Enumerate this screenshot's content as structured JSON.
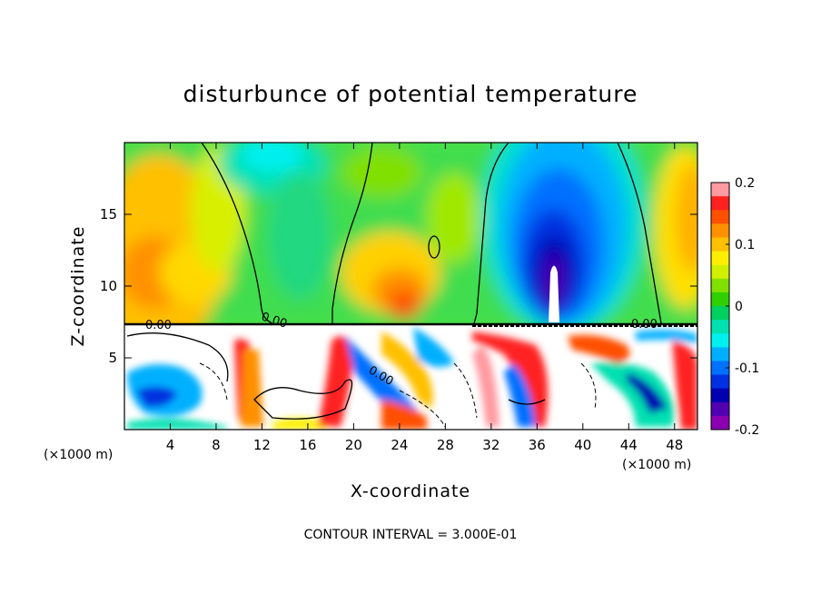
{
  "chart_data": {
    "type": "heatmap",
    "title": "disturbunce of potential temperature",
    "xlabel": "X-coordinate",
    "ylabel": "Z-coordinate",
    "x_unit_left": "(×1000 m)",
    "x_unit_right": "(×1000 m)",
    "footer": "CONTOUR INTERVAL = 3.000E-01",
    "xlim": [
      0,
      50
    ],
    "ylim": [
      0,
      20
    ],
    "x_ticks": [
      4,
      8,
      12,
      16,
      20,
      24,
      28,
      32,
      36,
      40,
      44,
      48
    ],
    "y_ticks": [
      5,
      10,
      15
    ],
    "colorbar": {
      "range": [
        -0.2,
        0.2
      ],
      "ticks": [
        "0.2",
        "0.1",
        "0",
        "-0.1",
        "-0.2"
      ],
      "colors": [
        "#ff9aa0",
        "#ff2020",
        "#ff5000",
        "#ff9000",
        "#ffc000",
        "#ffee00",
        "#d0f000",
        "#80e000",
        "#30d000",
        "#00d060",
        "#00e0b0",
        "#00f0f0",
        "#00b0ff",
        "#0070ff",
        "#0030e0",
        "#0000b0",
        "#5000b0",
        "#8a00b0"
      ]
    },
    "contour_labels": [
      "0.00",
      "0.00",
      "0.00",
      "0.00"
    ],
    "field_layout_note": ""
  }
}
